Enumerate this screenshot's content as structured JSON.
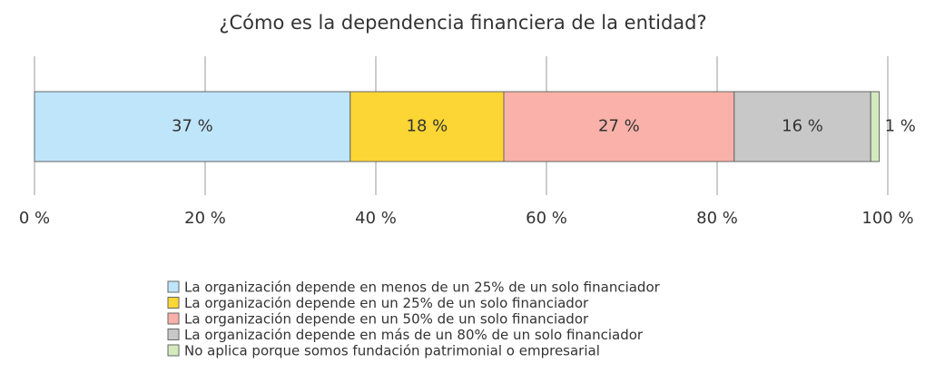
{
  "chart_data": {
    "type": "stacked_bar_horizontal",
    "title": "¿Cómo es la dependencia financiera de la entidad?",
    "categories": [
      null
    ],
    "series": [
      {
        "name": "La organización depende en menos de un 25% de un solo financiador",
        "color": "#bfe5fb",
        "values": [
          37
        ],
        "value_labels": [
          "37 %"
        ]
      },
      {
        "name": "La organización depende en un 25% de un solo financiador",
        "color": "#fcd634",
        "values": [
          18
        ],
        "value_labels": [
          "18 %"
        ]
      },
      {
        "name": "La organización depende en un 50% de un solo financiador",
        "color": "#f9b1a9",
        "values": [
          27
        ],
        "value_labels": [
          "27 %"
        ]
      },
      {
        "name": "La organización depende en más de un 80% de un solo financiador",
        "color": "#c8c8c8",
        "values": [
          16
        ],
        "value_labels": [
          "16 %"
        ]
      },
      {
        "name": "No aplica porque somos fundación patrimonial o empresarial",
        "color": "#d3eabd",
        "values": [
          1
        ],
        "value_labels": [
          "1 %"
        ]
      }
    ],
    "xlim": [
      0,
      100
    ],
    "xticks": [
      {
        "value": 0,
        "label": "0 %"
      },
      {
        "value": 20,
        "label": "20 %"
      },
      {
        "value": 40,
        "label": "40 %"
      },
      {
        "value": 60,
        "label": "60 %"
      },
      {
        "value": 80,
        "label": "80 %"
      },
      {
        "value": 100,
        "label": "100 %"
      }
    ],
    "grid": true,
    "legend": "bottom"
  }
}
